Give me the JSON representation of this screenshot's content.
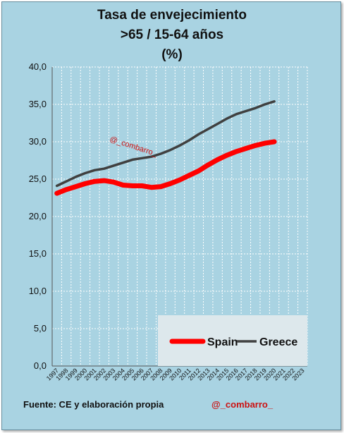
{
  "title": [
    "Tasa de envejecimiento",
    ">65 / 15-64 años",
    "(%)"
  ],
  "footer": {
    "source": "Fuente:  CE y elaboración propia",
    "handle": "@_combarro_"
  },
  "watermark": "@_combarro_",
  "colors": {
    "background": "#a9d3e2",
    "grid": "#ffffff",
    "spain": "#ff0000",
    "greece": "#404040",
    "legend_bg": "#dde8ec"
  },
  "chart_data": {
    "type": "line",
    "title": "Tasa de envejecimiento >65 / 15-64 años (%)",
    "x": [
      "1997",
      "1998",
      "1999",
      "2000",
      "2001",
      "2002",
      "2003",
      "2004",
      "2005",
      "2006",
      "2007",
      "2008",
      "2009",
      "2010",
      "2011",
      "2012",
      "2013",
      "2014",
      "2015",
      "2016",
      "2017",
      "2018",
      "2019",
      "2020",
      "2021",
      "2022",
      "2023"
    ],
    "ylim": [
      0,
      40
    ],
    "yticks": [
      "0,0",
      "5,0",
      "10,0",
      "15,0",
      "20,0",
      "25,0",
      "30,0",
      "35,0",
      "40,0"
    ],
    "grid": true,
    "legend_position": "bottom-right",
    "series": [
      {
        "name": "Spain",
        "values": [
          23.1,
          23.6,
          24.0,
          24.4,
          24.7,
          24.8,
          24.6,
          24.2,
          24.1,
          24.1,
          23.9,
          24.0,
          24.4,
          24.9,
          25.5,
          26.1,
          26.9,
          27.6,
          28.2,
          28.7,
          29.1,
          29.5,
          29.8,
          30.0,
          null,
          null,
          null
        ]
      },
      {
        "name": "Greece",
        "values": [
          24.1,
          24.7,
          25.3,
          25.8,
          26.2,
          26.4,
          26.8,
          27.2,
          27.6,
          27.8,
          28.0,
          28.4,
          28.9,
          29.5,
          30.2,
          31.0,
          31.7,
          32.4,
          33.1,
          33.7,
          34.1,
          34.5,
          35.0,
          35.4,
          null,
          null,
          null
        ]
      }
    ]
  }
}
